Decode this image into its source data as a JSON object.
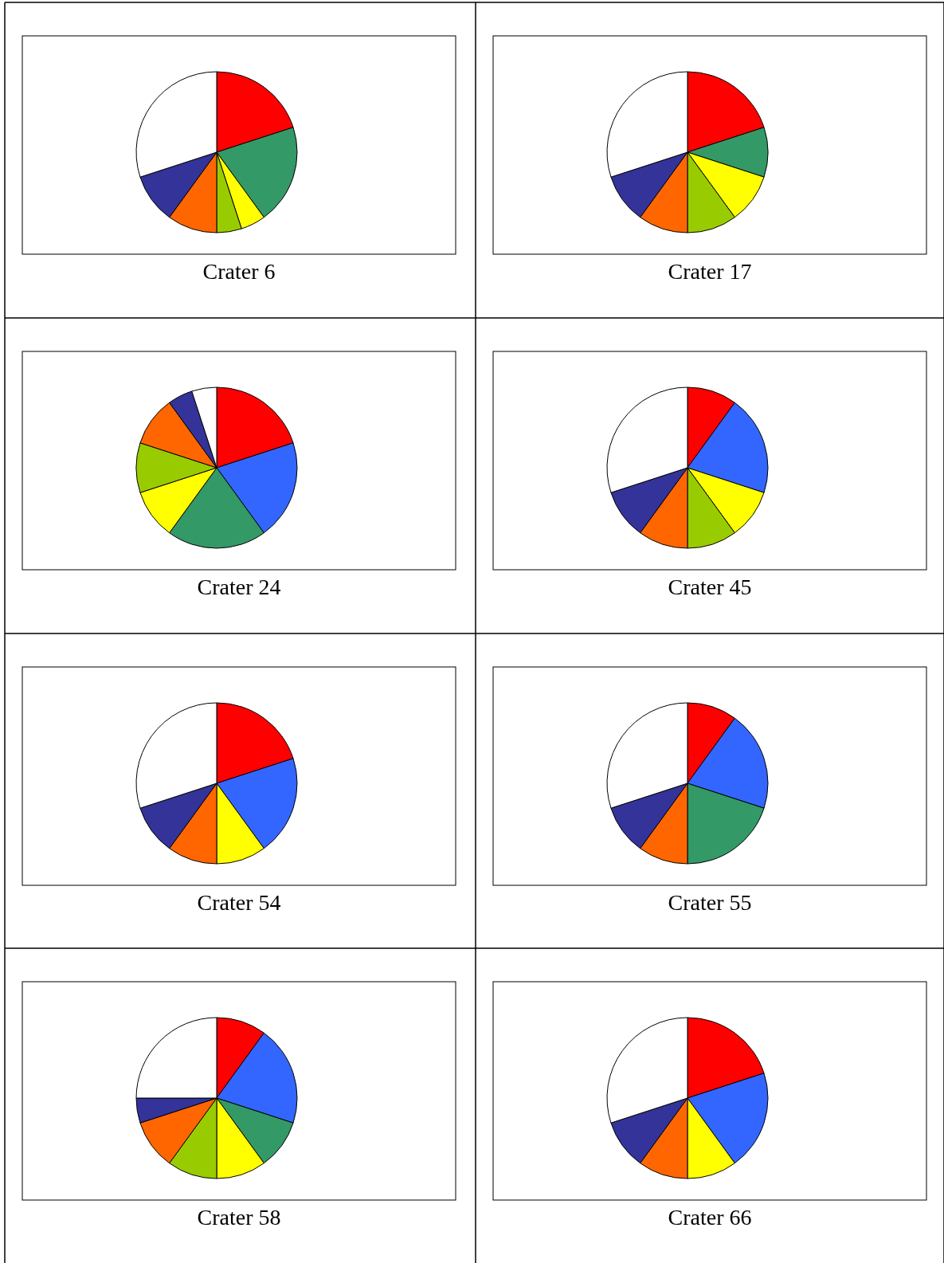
{
  "chart_data": [
    {
      "type": "pie",
      "title": "Crater 6",
      "categories": [
        null,
        null,
        null,
        null,
        null,
        null,
        null
      ],
      "values": [
        20,
        20,
        5,
        5,
        10,
        10,
        30
      ],
      "colors": [
        "#ff0000",
        "#339966",
        "#ffff00",
        "#99cc00",
        "#ff6600",
        "#333399",
        "#ffffff"
      ]
    },
    {
      "type": "pie",
      "title": "Crater 17",
      "categories": [
        null,
        null,
        null,
        null,
        null,
        null,
        null
      ],
      "values": [
        20,
        10,
        10,
        10,
        10,
        10,
        30
      ],
      "colors": [
        "#ff0000",
        "#339966",
        "#ffff00",
        "#99cc00",
        "#ff6600",
        "#333399",
        "#ffffff"
      ]
    },
    {
      "type": "pie",
      "title": "Crater 24",
      "categories": [
        null,
        null,
        null,
        null,
        null,
        null,
        null,
        null
      ],
      "values": [
        20,
        20,
        20,
        10,
        10,
        10,
        5,
        5
      ],
      "colors": [
        "#ff0000",
        "#3366ff",
        "#339966",
        "#ffff00",
        "#99cc00",
        "#ff6600",
        "#333399",
        "#ffffff"
      ]
    },
    {
      "type": "pie",
      "title": "Crater 45",
      "categories": [
        null,
        null,
        null,
        null,
        null,
        null,
        null
      ],
      "values": [
        10,
        20,
        10,
        10,
        10,
        10,
        30
      ],
      "colors": [
        "#ff0000",
        "#3366ff",
        "#ffff00",
        "#99cc00",
        "#ff6600",
        "#333399",
        "#ffffff"
      ]
    },
    {
      "type": "pie",
      "title": "Crater 54",
      "categories": [
        null,
        null,
        null,
        null,
        null,
        null
      ],
      "values": [
        20,
        20,
        10,
        10,
        10,
        30
      ],
      "colors": [
        "#ff0000",
        "#3366ff",
        "#ffff00",
        "#ff6600",
        "#333399",
        "#ffffff"
      ]
    },
    {
      "type": "pie",
      "title": "Crater 55",
      "categories": [
        null,
        null,
        null,
        null,
        null,
        null
      ],
      "values": [
        10,
        20,
        20,
        10,
        10,
        30
      ],
      "colors": [
        "#ff0000",
        "#3366ff",
        "#339966",
        "#ff6600",
        "#333399",
        "#ffffff"
      ]
    },
    {
      "type": "pie",
      "title": "Crater 58",
      "categories": [
        null,
        null,
        null,
        null,
        null,
        null,
        null,
        null
      ],
      "values": [
        10,
        20,
        10,
        10,
        10,
        10,
        5,
        25
      ],
      "colors": [
        "#ff0000",
        "#3366ff",
        "#339966",
        "#ffff00",
        "#99cc00",
        "#ff6600",
        "#333399",
        "#ffffff"
      ]
    },
    {
      "type": "pie",
      "title": "Crater 66",
      "categories": [
        null,
        null,
        null,
        null,
        null,
        null
      ],
      "values": [
        20,
        20,
        10,
        10,
        10,
        30
      ],
      "colors": [
        "#ff0000",
        "#3366ff",
        "#ffff00",
        "#ff6600",
        "#333399",
        "#ffffff"
      ]
    }
  ]
}
